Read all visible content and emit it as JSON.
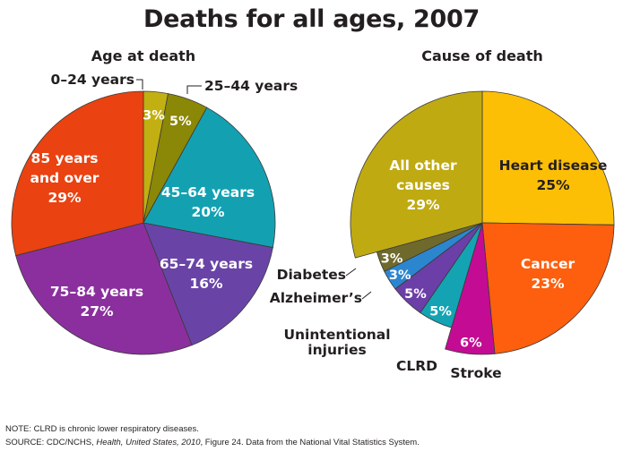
{
  "title": "Deaths for all ages, 2007",
  "chart_data": [
    {
      "type": "pie",
      "title": "Age at death",
      "unit": "%",
      "slices": [
        {
          "label": "0–24 years",
          "value": 3,
          "color": "#c2b012",
          "display": "3%",
          "text_color": "#ffffff",
          "label_inside": false
        },
        {
          "label": "25–44 years",
          "value": 5,
          "color": "#8b8707",
          "display": "5%",
          "text_color": "#ffffff",
          "label_inside": false
        },
        {
          "label": "45–64 years",
          "value": 20,
          "color": "#13a1b2",
          "display": "20%",
          "text_color": "#ffffff",
          "label_inside": true
        },
        {
          "label": "65–74 years",
          "value": 16,
          "color": "#6944a6",
          "display": "16%",
          "text_color": "#ffffff",
          "label_inside": true
        },
        {
          "label": "75–84 years",
          "value": 27,
          "color": "#8b2f9e",
          "display": "27%",
          "text_color": "#ffffff",
          "label_inside": true
        },
        {
          "label": "85 years and over",
          "value": 29,
          "color": "#ea4210",
          "display": "29%",
          "text_color": "#ffffff",
          "label_inside": true
        }
      ]
    },
    {
      "type": "pie",
      "title": "Cause of death",
      "unit": "%",
      "slices": [
        {
          "label": "Heart disease",
          "value": 25,
          "color": "#fdbf06",
          "display": "25%",
          "text_color": "#231f20",
          "label_inside": true
        },
        {
          "label": "Cancer",
          "value": 23,
          "color": "#fd5f0e",
          "display": "23%",
          "text_color": "#ffffff",
          "label_inside": true
        },
        {
          "label": "Stroke",
          "value": 6,
          "color": "#c30c93",
          "display": "6%",
          "text_color": "#ffffff",
          "label_inside": false
        },
        {
          "label": "CLRD",
          "value": 5,
          "color": "#14a3b2",
          "display": "5%",
          "text_color": "#ffffff",
          "label_inside": false
        },
        {
          "label": "Unintentional injuries",
          "value": 5,
          "color": "#6b3fa7",
          "display": "5%",
          "text_color": "#ffffff",
          "label_inside": false
        },
        {
          "label": "Alzheimer’s",
          "value": 3,
          "color": "#2c86cf",
          "display": "3%",
          "text_color": "#ffffff",
          "label_inside": false
        },
        {
          "label": "Diabetes",
          "value": 3,
          "color": "#6f6a2c",
          "display": "3%",
          "text_color": "#ffffff",
          "label_inside": false
        },
        {
          "label": "All other causes",
          "value": 29,
          "color": "#bfaa12",
          "display": "29%",
          "text_color": "#ffffff",
          "label_inside": true
        }
      ]
    }
  ],
  "footnotes": {
    "note": "NOTE: CLRD is chronic lower respiratory diseases.",
    "source_prefix": "SOURCE: CDC/NCHS, ",
    "source_title": "Health, United States, 2010",
    "source_suffix": ", Figure 24. Data from the National Vital Statistics System."
  }
}
